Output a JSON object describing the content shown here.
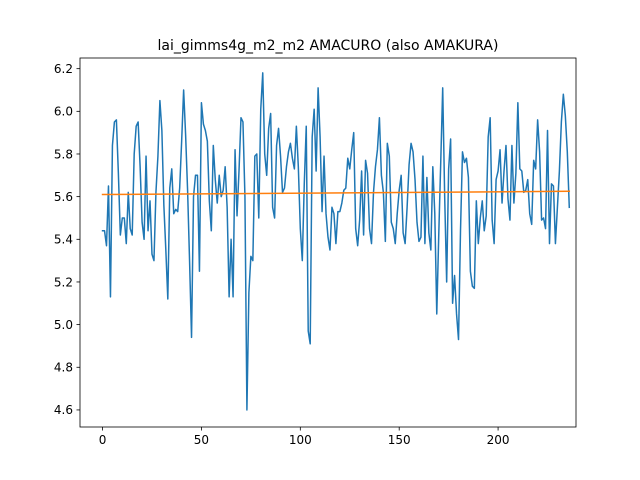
{
  "chart_data": {
    "type": "line",
    "title": "lai_gimms4g_m2_m2 AMACURO (also AMAKURA)",
    "xlabel": "",
    "ylabel": "",
    "xlim": [
      -11.4,
      239.4
    ],
    "ylim": [
      4.52,
      6.25
    ],
    "xticks": [
      0,
      50,
      100,
      150,
      200
    ],
    "yticks": [
      4.6,
      4.8,
      5.0,
      5.2,
      5.4,
      5.6,
      5.8,
      6.0,
      6.2
    ],
    "grid": false,
    "legend": "none",
    "series": [
      {
        "color": "#1f77b4",
        "values": [
          5.44,
          5.44,
          5.37,
          5.65,
          5.13,
          5.84,
          5.95,
          5.96,
          5.71,
          5.42,
          5.5,
          5.5,
          5.38,
          5.62,
          5.45,
          5.42,
          5.8,
          5.93,
          5.95,
          5.74,
          5.48,
          5.4,
          5.79,
          5.44,
          5.58,
          5.33,
          5.3,
          5.62,
          5.79,
          6.05,
          5.91,
          5.56,
          5.35,
          5.12,
          5.64,
          5.73,
          5.52,
          5.54,
          5.53,
          5.64,
          5.86,
          6.1,
          5.89,
          5.63,
          5.3,
          4.94,
          5.6,
          5.7,
          5.7,
          5.25,
          6.04,
          5.94,
          5.91,
          5.86,
          5.58,
          5.44,
          5.84,
          5.68,
          5.57,
          5.7,
          5.6,
          5.63,
          5.74,
          5.55,
          5.13,
          5.4,
          5.13,
          5.82,
          5.51,
          5.72,
          5.97,
          5.95,
          5.6,
          4.6,
          5.15,
          5.32,
          5.3,
          5.79,
          5.8,
          5.5,
          6.01,
          6.18,
          5.8,
          5.7,
          5.92,
          5.99,
          5.55,
          5.5,
          5.84,
          5.92,
          5.79,
          5.62,
          5.64,
          5.74,
          5.81,
          5.85,
          5.78,
          5.73,
          5.93,
          5.74,
          5.45,
          5.3,
          5.66,
          5.93,
          4.97,
          4.91,
          5.88,
          6.01,
          5.72,
          6.11,
          5.88,
          5.53,
          5.79,
          5.52,
          5.41,
          5.35,
          5.55,
          5.52,
          5.38,
          5.53,
          5.53,
          5.57,
          5.63,
          5.64,
          5.78,
          5.73,
          5.82,
          5.9,
          5.45,
          5.37,
          5.49,
          5.72,
          5.42,
          5.77,
          5.71,
          5.45,
          5.38,
          5.62,
          5.74,
          5.82,
          5.97,
          5.7,
          5.62,
          5.39,
          5.85,
          5.79,
          5.48,
          5.45,
          5.38,
          5.52,
          5.63,
          5.7,
          5.43,
          5.38,
          5.55,
          5.75,
          5.85,
          5.81,
          5.68,
          5.48,
          5.39,
          5.41,
          5.79,
          5.38,
          5.69,
          5.43,
          5.35,
          5.74,
          5.52,
          5.05,
          5.42,
          5.76,
          6.11,
          5.6,
          5.2,
          5.73,
          5.87,
          5.1,
          5.23,
          5.05,
          4.93,
          5.44,
          5.81,
          5.76,
          5.78,
          5.69,
          5.25,
          5.18,
          5.17,
          5.58,
          5.38,
          5.5,
          5.58,
          5.44,
          5.51,
          5.88,
          5.97,
          5.49,
          5.38,
          5.68,
          5.72,
          5.82,
          5.57,
          5.72,
          5.84,
          5.59,
          5.49,
          5.84,
          5.57,
          5.71,
          6.04,
          5.73,
          5.72,
          5.62,
          5.63,
          5.68,
          5.52,
          5.47,
          5.77,
          5.73,
          5.96,
          5.81,
          5.49,
          5.5,
          5.45,
          5.91,
          5.38,
          5.66,
          5.65,
          5.38,
          5.55,
          5.72,
          5.95,
          6.08,
          5.98,
          5.81,
          5.55
        ]
      },
      {
        "color": "#ff7f0e",
        "values": [
          5.61,
          5.625
        ]
      }
    ]
  }
}
